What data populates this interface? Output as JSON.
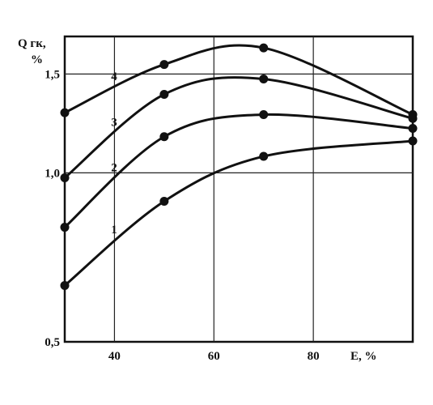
{
  "chart_data": {
    "type": "line",
    "title": "",
    "xlabel": "E, %",
    "ylabel_main": "Q гк,",
    "ylabel_unit": "%",
    "xlim": [
      30,
      100
    ],
    "ylim": [
      0.5,
      1.75
    ],
    "log_y": true,
    "grid": true,
    "x_ticks": [
      40,
      60,
      80
    ],
    "x_tick_labels": [
      "40",
      "60",
      "80"
    ],
    "y_ticks": [
      0.5,
      1.0,
      1.5
    ],
    "y_tick_labels": [
      "0,5",
      "1,0",
      "1,5"
    ],
    "line_color": "#111111",
    "series": [
      {
        "name": "1",
        "x": [
          30,
          50,
          70,
          100
        ],
        "y": [
          0.63,
          0.89,
          1.07,
          1.14
        ]
      },
      {
        "name": "2",
        "x": [
          30,
          50,
          70,
          100
        ],
        "y": [
          0.8,
          1.16,
          1.27,
          1.2
        ]
      },
      {
        "name": "3",
        "x": [
          30,
          50,
          70,
          100
        ],
        "y": [
          0.98,
          1.38,
          1.47,
          1.25
        ]
      },
      {
        "name": "4",
        "x": [
          30,
          50,
          70,
          100
        ],
        "y": [
          1.28,
          1.56,
          1.67,
          1.27
        ]
      }
    ]
  }
}
